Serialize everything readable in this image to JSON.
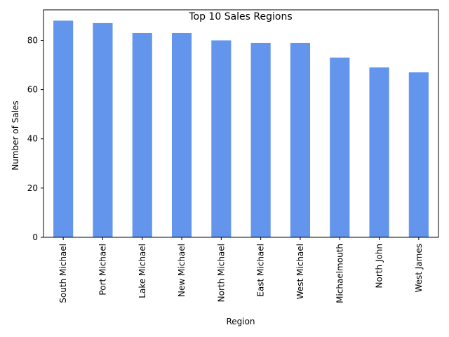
{
  "chart_data": {
    "type": "bar",
    "title": "Top 10 Sales Regions",
    "xlabel": "Region",
    "ylabel": "Number of Sales",
    "categories": [
      "South Michael",
      "Port Michael",
      "Lake Michael",
      "New Michael",
      "North Michael",
      "East Michael",
      "West Michael",
      "Michaelmouth",
      "North John",
      "West James"
    ],
    "values": [
      88,
      87,
      83,
      83,
      80,
      79,
      79,
      73,
      69,
      67
    ],
    "ylim": [
      0,
      92.4
    ],
    "yticks": [
      0,
      20,
      40,
      60,
      80
    ],
    "bar_color": "#6495ed",
    "grid": false,
    "legend": "none"
  }
}
